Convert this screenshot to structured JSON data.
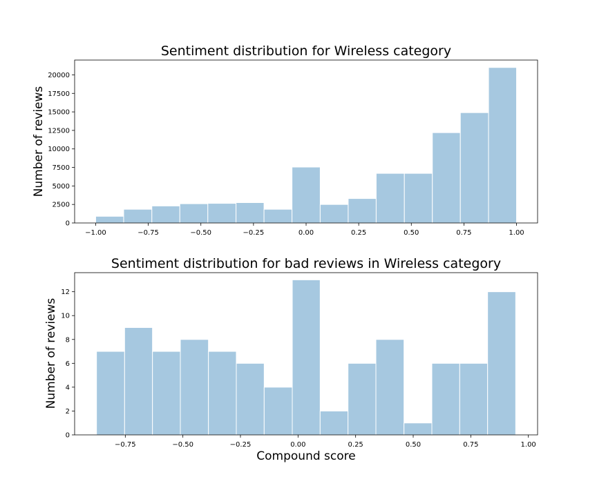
{
  "chart_data": [
    {
      "type": "bar",
      "title": "Sentiment distribution for Wireless category",
      "xlabel": "",
      "ylabel": "Number of reviews",
      "xlim": [
        -1.1,
        1.1
      ],
      "ylim": [
        0,
        22000
      ],
      "grid": false,
      "bar_color": "#a6c8e0",
      "xticks": [
        -1.0,
        -0.75,
        -0.5,
        -0.25,
        0.0,
        0.25,
        0.5,
        0.75,
        1.0
      ],
      "xtick_labels": [
        "−1.00",
        "−0.75",
        "−0.50",
        "−0.25",
        "0.00",
        "0.25",
        "0.50",
        "0.75",
        "1.00"
      ],
      "yticks": [
        0,
        2500,
        5000,
        7500,
        10000,
        12500,
        15000,
        17500,
        20000
      ],
      "ytick_labels": [
        "0",
        "2500",
        "5000",
        "7500",
        "10000",
        "12500",
        "15000",
        "17500",
        "20000"
      ],
      "bin_edges": [
        -1.0,
        -0.867,
        -0.733,
        -0.6,
        -0.467,
        -0.333,
        -0.2,
        -0.067,
        0.067,
        0.2,
        0.333,
        0.467,
        0.6,
        0.733,
        0.867,
        1.0
      ],
      "values": [
        900,
        1850,
        2300,
        2600,
        2650,
        2750,
        1850,
        7550,
        2500,
        3300,
        6700,
        6700,
        12200,
        14900,
        21000
      ]
    },
    {
      "type": "bar",
      "title": "Sentiment distribution for bad reviews in Wireless category",
      "xlabel": "Compound score",
      "ylabel": "Number of reviews",
      "xlim": [
        -0.97,
        1.04
      ],
      "ylim": [
        0,
        13.6
      ],
      "grid": false,
      "bar_color": "#a6c8e0",
      "xticks": [
        -0.75,
        -0.5,
        -0.25,
        0.0,
        0.25,
        0.5,
        0.75,
        1.0
      ],
      "xtick_labels": [
        "−0.75",
        "−0.50",
        "−0.25",
        "0.00",
        "0.25",
        "0.50",
        "0.75",
        "1.00"
      ],
      "yticks": [
        0,
        2,
        4,
        6,
        8,
        10,
        12
      ],
      "ytick_labels": [
        "0",
        "2",
        "4",
        "6",
        "8",
        "10",
        "12"
      ],
      "bin_edges": [
        -0.875,
        -0.753,
        -0.632,
        -0.511,
        -0.389,
        -0.268,
        -0.147,
        -0.025,
        0.096,
        0.217,
        0.338,
        0.46,
        0.581,
        0.702,
        0.823,
        0.945
      ],
      "values": [
        7,
        9,
        7,
        8,
        7,
        6,
        4,
        13,
        2,
        6,
        8,
        1,
        6,
        6,
        12
      ]
    }
  ]
}
